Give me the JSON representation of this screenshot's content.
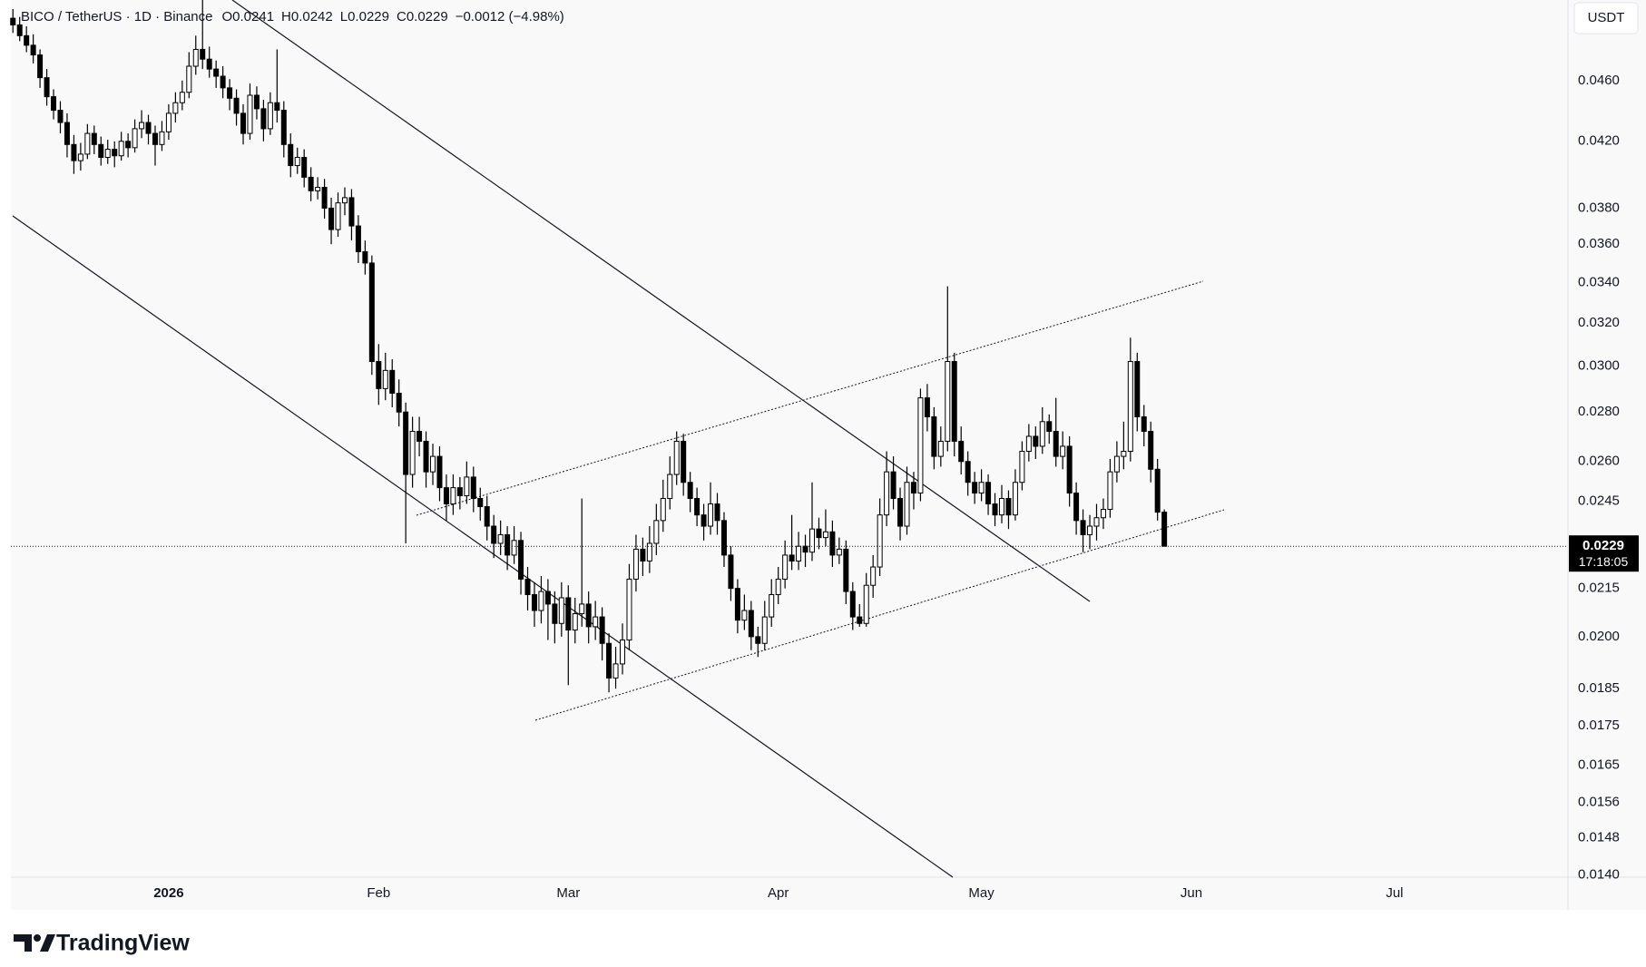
{
  "chart_data": {
    "type": "candlestick",
    "symbol": "BICO / TetherUS · 1D · Binance",
    "legend": [
      "O0.0241",
      "H0.0242",
      "L0.0229",
      "C0.0229",
      "−0.0012 (−4.98%)"
    ],
    "currency": "USDT",
    "last_price_label": "0.0229",
    "countdown": "17:18:05",
    "brand": "TradingView",
    "up_color": "#ffffff",
    "down_color": "#000000",
    "border_color": "#000000",
    "log_scale": true,
    "grid": false,
    "ylim": [
      0.01395,
      0.0519
    ],
    "yticks": [
      {
        "value": 0.046,
        "label": "0.0460"
      },
      {
        "value": 0.042,
        "label": "0.0420"
      },
      {
        "value": 0.038,
        "label": "0.0380"
      },
      {
        "value": 0.036,
        "label": "0.0360"
      },
      {
        "value": 0.034,
        "label": "0.0340"
      },
      {
        "value": 0.032,
        "label": "0.0320"
      },
      {
        "value": 0.03,
        "label": "0.0300"
      },
      {
        "value": 0.028,
        "label": "0.0280"
      },
      {
        "value": 0.026,
        "label": "0.0260"
      },
      0.0245,
      0.0215,
      {
        "value": 0.02,
        "label": "0.0200"
      },
      0.0185,
      0.0175,
      0.0165,
      0.0156,
      0.0148,
      {
        "value": 0.014,
        "label": "0.0140"
      }
    ],
    "xlim": [
      -0.3,
      229.6
    ],
    "xticks": [
      {
        "value": 23,
        "label": "2026"
      },
      {
        "value": 54,
        "label": "Feb"
      },
      {
        "value": 82,
        "label": "Mar"
      },
      {
        "value": 113,
        "label": "Apr"
      },
      {
        "value": 143,
        "label": "May"
      },
      {
        "value": 174,
        "label": "Jun"
      },
      {
        "value": 204,
        "label": "Jul"
      }
    ],
    "ohlc": [
      [
        0.0505,
        0.0512,
        0.0494,
        0.05
      ],
      [
        0.05,
        0.0506,
        0.0488,
        0.0492
      ],
      [
        0.0492,
        0.0499,
        0.048,
        0.0485
      ],
      [
        0.0485,
        0.0493,
        0.0472,
        0.0478
      ],
      [
        0.0478,
        0.0482,
        0.0455,
        0.0462
      ],
      [
        0.0462,
        0.0468,
        0.0443,
        0.0449
      ],
      [
        0.0449,
        0.0454,
        0.0434,
        0.044
      ],
      [
        0.044,
        0.0446,
        0.0425,
        0.0432
      ],
      [
        0.0432,
        0.0438,
        0.041,
        0.0418
      ],
      [
        0.0418,
        0.0424,
        0.04,
        0.0408
      ],
      [
        0.0408,
        0.0419,
        0.0402,
        0.0412
      ],
      [
        0.0412,
        0.0431,
        0.0409,
        0.0425
      ],
      [
        0.0425,
        0.043,
        0.0412,
        0.0418
      ],
      [
        0.0418,
        0.0423,
        0.0405,
        0.041
      ],
      [
        0.041,
        0.0421,
        0.0406,
        0.0415
      ],
      [
        0.0415,
        0.042,
        0.0404,
        0.0411
      ],
      [
        0.0411,
        0.0426,
        0.0408,
        0.042
      ],
      [
        0.042,
        0.0425,
        0.041,
        0.0416
      ],
      [
        0.0416,
        0.0434,
        0.0413,
        0.0428
      ],
      [
        0.0428,
        0.044,
        0.0422,
        0.0432
      ],
      [
        0.0432,
        0.0437,
        0.0418,
        0.0425
      ],
      [
        0.0425,
        0.043,
        0.0405,
        0.0418
      ],
      [
        0.0418,
        0.0433,
        0.0414,
        0.0426
      ],
      [
        0.0426,
        0.0444,
        0.0421,
        0.0438
      ],
      [
        0.0438,
        0.0452,
        0.0432,
        0.0445
      ],
      [
        0.0445,
        0.046,
        0.044,
        0.0452
      ],
      [
        0.0452,
        0.048,
        0.0448,
        0.047
      ],
      [
        0.047,
        0.0492,
        0.0464,
        0.0482
      ],
      [
        0.0482,
        0.0519,
        0.0468,
        0.0475
      ],
      [
        0.0475,
        0.0484,
        0.0462,
        0.0468
      ],
      [
        0.0468,
        0.0474,
        0.0455,
        0.0463
      ],
      [
        0.0463,
        0.047,
        0.0448,
        0.0455
      ],
      [
        0.0455,
        0.0461,
        0.044,
        0.0448
      ],
      [
        0.0448,
        0.0454,
        0.043,
        0.0438
      ],
      [
        0.0438,
        0.0444,
        0.0418,
        0.0425
      ],
      [
        0.0425,
        0.0458,
        0.0421,
        0.045
      ],
      [
        0.045,
        0.0456,
        0.0434,
        0.0441
      ],
      [
        0.0441,
        0.0447,
        0.042,
        0.0428
      ],
      [
        0.0428,
        0.0452,
        0.0424,
        0.0445
      ],
      [
        0.0445,
        0.0482,
        0.0432,
        0.044
      ],
      [
        0.044,
        0.0446,
        0.041,
        0.0418
      ],
      [
        0.0418,
        0.0425,
        0.0398,
        0.0405
      ],
      [
        0.0405,
        0.0416,
        0.04,
        0.041
      ],
      [
        0.041,
        0.0415,
        0.0392,
        0.0398
      ],
      [
        0.0398,
        0.0404,
        0.0384,
        0.039
      ],
      [
        0.039,
        0.0398,
        0.0385,
        0.0392
      ],
      [
        0.0392,
        0.0397,
        0.0374,
        0.038
      ],
      [
        0.038,
        0.0386,
        0.036,
        0.0368
      ],
      [
        0.0368,
        0.0389,
        0.0364,
        0.0383
      ],
      [
        0.0383,
        0.0392,
        0.0376,
        0.0386
      ],
      [
        0.0386,
        0.0391,
        0.0362,
        0.037
      ],
      [
        0.037,
        0.0376,
        0.035,
        0.0356
      ],
      [
        0.0356,
        0.0362,
        0.0344,
        0.035
      ],
      [
        0.035,
        0.0354,
        0.0296,
        0.0302
      ],
      [
        0.0302,
        0.031,
        0.0283,
        0.029
      ],
      [
        0.029,
        0.0306,
        0.0285,
        0.0298
      ],
      [
        0.0298,
        0.0303,
        0.0282,
        0.0288
      ],
      [
        0.0288,
        0.0294,
        0.0274,
        0.028
      ],
      [
        0.028,
        0.0284,
        0.023,
        0.0255
      ],
      [
        0.0255,
        0.0278,
        0.025,
        0.0272
      ],
      [
        0.0272,
        0.0278,
        0.0262,
        0.0268
      ],
      [
        0.0268,
        0.0272,
        0.025,
        0.0256
      ],
      [
        0.0256,
        0.0267,
        0.0251,
        0.0262
      ],
      [
        0.0262,
        0.0266,
        0.0245,
        0.025
      ],
      [
        0.025,
        0.0255,
        0.0238,
        0.0244
      ],
      [
        0.0244,
        0.0255,
        0.024,
        0.025
      ],
      [
        0.025,
        0.0254,
        0.0242,
        0.0247
      ],
      [
        0.0247,
        0.026,
        0.0244,
        0.0254
      ],
      [
        0.0254,
        0.0258,
        0.0241,
        0.0246
      ],
      [
        0.0246,
        0.025,
        0.0238,
        0.0243
      ],
      [
        0.0243,
        0.0247,
        0.0231,
        0.0236
      ],
      [
        0.0236,
        0.024,
        0.0225,
        0.023
      ],
      [
        0.023,
        0.0238,
        0.0226,
        0.0233
      ],
      [
        0.0233,
        0.0236,
        0.0221,
        0.0226
      ],
      [
        0.0226,
        0.0236,
        0.0223,
        0.0231
      ],
      [
        0.0231,
        0.0234,
        0.0213,
        0.0218
      ],
      [
        0.0218,
        0.0222,
        0.0208,
        0.0213
      ],
      [
        0.0213,
        0.0217,
        0.0203,
        0.0208
      ],
      [
        0.0208,
        0.0219,
        0.0204,
        0.0214
      ],
      [
        0.0214,
        0.0218,
        0.0199,
        0.021
      ],
      [
        0.021,
        0.0214,
        0.0198,
        0.0204
      ],
      [
        0.0204,
        0.0217,
        0.02,
        0.0212
      ],
      [
        0.0212,
        0.0216,
        0.0186,
        0.0202
      ],
      [
        0.0202,
        0.0212,
        0.0198,
        0.0207
      ],
      [
        0.0207,
        0.0246,
        0.0203,
        0.021
      ],
      [
        0.021,
        0.0214,
        0.0198,
        0.0203
      ],
      [
        0.0203,
        0.0211,
        0.0199,
        0.0206
      ],
      [
        0.0206,
        0.0209,
        0.0193,
        0.0198
      ],
      [
        0.0198,
        0.0201,
        0.0184,
        0.0188
      ],
      [
        0.0188,
        0.0197,
        0.0185,
        0.0192
      ],
      [
        0.0192,
        0.0204,
        0.0189,
        0.0199
      ],
      [
        0.0199,
        0.0223,
        0.0196,
        0.0218
      ],
      [
        0.0218,
        0.0233,
        0.0214,
        0.0228
      ],
      [
        0.0228,
        0.0232,
        0.0219,
        0.0224
      ],
      [
        0.0224,
        0.0236,
        0.022,
        0.023
      ],
      [
        0.023,
        0.0244,
        0.0226,
        0.0238
      ],
      [
        0.0238,
        0.0253,
        0.0234,
        0.0246
      ],
      [
        0.0246,
        0.0262,
        0.0242,
        0.0255
      ],
      [
        0.0255,
        0.0272,
        0.0251,
        0.0268
      ],
      [
        0.0268,
        0.0271,
        0.0247,
        0.0252
      ],
      [
        0.0252,
        0.0256,
        0.0241,
        0.0246
      ],
      [
        0.0246,
        0.025,
        0.0236,
        0.024
      ],
      [
        0.024,
        0.0244,
        0.0231,
        0.0236
      ],
      [
        0.0236,
        0.0252,
        0.0233,
        0.0244
      ],
      [
        0.0244,
        0.0248,
        0.0233,
        0.0238
      ],
      [
        0.0238,
        0.0241,
        0.0222,
        0.0226
      ],
      [
        0.0226,
        0.0229,
        0.0211,
        0.0215
      ],
      [
        0.0215,
        0.0218,
        0.0201,
        0.0205
      ],
      [
        0.0205,
        0.0213,
        0.0202,
        0.0208
      ],
      [
        0.0208,
        0.0211,
        0.0196,
        0.02
      ],
      [
        0.02,
        0.0203,
        0.0194,
        0.0198
      ],
      [
        0.0198,
        0.0211,
        0.0196,
        0.0206
      ],
      [
        0.0206,
        0.0218,
        0.0203,
        0.0213
      ],
      [
        0.0213,
        0.0222,
        0.021,
        0.0218
      ],
      [
        0.0218,
        0.0231,
        0.0215,
        0.0226
      ],
      [
        0.0226,
        0.024,
        0.0221,
        0.0224
      ],
      [
        0.0224,
        0.0234,
        0.0221,
        0.0229
      ],
      [
        0.0229,
        0.0233,
        0.0222,
        0.0227
      ],
      [
        0.0227,
        0.0252,
        0.0224,
        0.0235
      ],
      [
        0.0235,
        0.0239,
        0.0228,
        0.0232
      ],
      [
        0.0232,
        0.0242,
        0.0229,
        0.0234
      ],
      [
        0.0234,
        0.0238,
        0.0222,
        0.0226
      ],
      [
        0.0226,
        0.0232,
        0.0223,
        0.0228
      ],
      [
        0.0228,
        0.0231,
        0.021,
        0.0214
      ],
      [
        0.0214,
        0.0217,
        0.0202,
        0.0206
      ],
      [
        0.0206,
        0.021,
        0.0203,
        0.0204
      ],
      [
        0.0204,
        0.022,
        0.0203,
        0.0216
      ],
      [
        0.0216,
        0.0226,
        0.0212,
        0.0222
      ],
      [
        0.0222,
        0.0246,
        0.0219,
        0.024
      ],
      [
        0.024,
        0.0264,
        0.0236,
        0.0256
      ],
      [
        0.0256,
        0.0262,
        0.0242,
        0.0246
      ],
      [
        0.0246,
        0.025,
        0.0231,
        0.0236
      ],
      [
        0.0236,
        0.0258,
        0.0233,
        0.0252
      ],
      [
        0.0252,
        0.0256,
        0.0242,
        0.0248
      ],
      [
        0.0248,
        0.029,
        0.0245,
        0.0286
      ],
      [
        0.0286,
        0.0292,
        0.0272,
        0.0278
      ],
      [
        0.0278,
        0.0282,
        0.0257,
        0.0262
      ],
      [
        0.0262,
        0.0274,
        0.0258,
        0.0268
      ],
      [
        0.0268,
        0.0338,
        0.0264,
        0.0302
      ],
      [
        0.0302,
        0.0306,
        0.0262,
        0.0268
      ],
      [
        0.0268,
        0.0274,
        0.0255,
        0.026
      ],
      [
        0.026,
        0.0264,
        0.0247,
        0.0252
      ],
      [
        0.0252,
        0.0256,
        0.0244,
        0.0248
      ],
      [
        0.0248,
        0.0257,
        0.0245,
        0.0252
      ],
      [
        0.0252,
        0.0255,
        0.024,
        0.0244
      ],
      [
        0.0244,
        0.0248,
        0.0236,
        0.024
      ],
      [
        0.024,
        0.0251,
        0.0237,
        0.0246
      ],
      [
        0.0246,
        0.0249,
        0.0235,
        0.024
      ],
      [
        0.024,
        0.0257,
        0.0238,
        0.0252
      ],
      [
        0.0252,
        0.0268,
        0.0249,
        0.0264
      ],
      [
        0.0264,
        0.0275,
        0.026,
        0.027
      ],
      [
        0.027,
        0.0274,
        0.0261,
        0.0266
      ],
      [
        0.0266,
        0.0282,
        0.0263,
        0.0276
      ],
      [
        0.0276,
        0.0279,
        0.0267,
        0.0272
      ],
      [
        0.0272,
        0.0286,
        0.0258,
        0.0262
      ],
      [
        0.0262,
        0.0272,
        0.0257,
        0.0266
      ],
      [
        0.0266,
        0.027,
        0.0243,
        0.0248
      ],
      [
        0.0248,
        0.0252,
        0.0233,
        0.0238
      ],
      [
        0.0238,
        0.0242,
        0.0227,
        0.0233
      ],
      [
        0.0233,
        0.024,
        0.0228,
        0.0236
      ],
      [
        0.0236,
        0.0244,
        0.0231,
        0.0239
      ],
      [
        0.0239,
        0.0246,
        0.0235,
        0.0242
      ],
      [
        0.0242,
        0.0261,
        0.0239,
        0.0256
      ],
      [
        0.0256,
        0.0268,
        0.0252,
        0.0262
      ],
      [
        0.0262,
        0.0276,
        0.0257,
        0.0264
      ],
      [
        0.0264,
        0.0313,
        0.026,
        0.0302
      ],
      [
        0.0302,
        0.0306,
        0.0272,
        0.0278
      ],
      [
        0.0278,
        0.0283,
        0.0266,
        0.0272
      ],
      [
        0.0272,
        0.0276,
        0.0252,
        0.0257
      ],
      [
        0.0257,
        0.0261,
        0.0238,
        0.0241
      ],
      [
        0.0241,
        0.0242,
        0.0229,
        0.0229
      ]
    ]
  }
}
